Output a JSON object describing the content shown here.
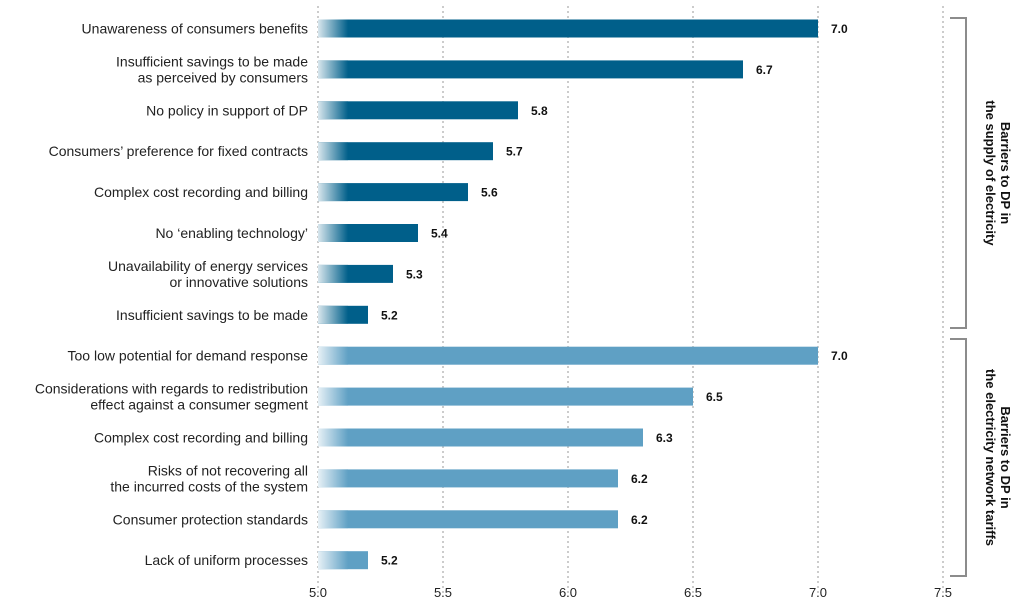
{
  "chart_data": {
    "type": "bar",
    "orientation": "horizontal",
    "xlim": [
      5.0,
      7.5
    ],
    "xticks": [
      "5.0",
      "5.5",
      "6.0",
      "6.5",
      "7.0",
      "7.5"
    ],
    "grid": "vertical dotted",
    "groups": [
      {
        "title_lines": [
          "Barriers to DP in",
          "the supply of electricity"
        ],
        "color": "#005f8a",
        "bars": [
          {
            "label_lines": [
              "Unawareness of consumers benefits"
            ],
            "value": 7.0,
            "value_label": "7.0"
          },
          {
            "label_lines": [
              "Insufficient savings to be made",
              "as perceived by consumers"
            ],
            "value": 6.7,
            "value_label": "6.7"
          },
          {
            "label_lines": [
              "No policy in support of DP"
            ],
            "value": 5.8,
            "value_label": "5.8"
          },
          {
            "label_lines": [
              "Consumers’ preference for fixed contracts"
            ],
            "value": 5.7,
            "value_label": "5.7"
          },
          {
            "label_lines": [
              "Complex cost recording and billing"
            ],
            "value": 5.6,
            "value_label": "5.6"
          },
          {
            "label_lines": [
              "No ‘enabling technology’"
            ],
            "value": 5.4,
            "value_label": "5.4"
          },
          {
            "label_lines": [
              "Unavailability of energy services",
              "or innovative solutions"
            ],
            "value": 5.3,
            "value_label": "5.3"
          },
          {
            "label_lines": [
              "Insufficient savings to be made"
            ],
            "value": 5.2,
            "value_label": "5.2"
          }
        ]
      },
      {
        "title_lines": [
          "Barriers to DP in",
          "the electricity network tariffs"
        ],
        "color": "#5fa0c4",
        "bars": [
          {
            "label_lines": [
              "Too low potential for demand response"
            ],
            "value": 7.0,
            "value_label": "7.0"
          },
          {
            "label_lines": [
              "Considerations with regards to redistribution",
              "effect against a consumer segment"
            ],
            "value": 6.5,
            "value_label": "6.5"
          },
          {
            "label_lines": [
              "Complex cost recording and billing"
            ],
            "value": 6.3,
            "value_label": "6.3"
          },
          {
            "label_lines": [
              "Risks of not recovering all",
              "the incurred costs of the system"
            ],
            "value": 6.2,
            "value_label": "6.2"
          },
          {
            "label_lines": [
              "Consumer protection standards"
            ],
            "value": 6.2,
            "value_label": "6.2"
          },
          {
            "label_lines": [
              "Lack of uniform processes"
            ],
            "value": 5.2,
            "value_label": "5.2"
          }
        ]
      }
    ]
  }
}
